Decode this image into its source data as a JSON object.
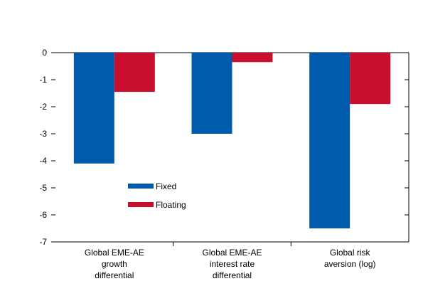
{
  "chart_data": {
    "type": "bar",
    "title": "",
    "xlabel": "",
    "ylabel": "",
    "ylim": [
      -7,
      0
    ],
    "yticks": [
      "0",
      "-1",
      "-2",
      "-3",
      "-4",
      "-5",
      "-6",
      "-7"
    ],
    "grid": false,
    "legend_position": "center-left",
    "categories": [
      [
        "Global EME-AE",
        "growth",
        "differential"
      ],
      [
        "Global EME-AE",
        "interest rate",
        "differential"
      ],
      [
        "Global risk",
        "aversion (log)"
      ]
    ],
    "series": [
      {
        "name": "Fixed",
        "color": "#005BAC",
        "values": [
          -4.1,
          -3.0,
          -6.5
        ]
      },
      {
        "name": "Floating",
        "color": "#C8102E",
        "values": [
          -1.45,
          -0.35,
          -1.9
        ]
      }
    ]
  }
}
